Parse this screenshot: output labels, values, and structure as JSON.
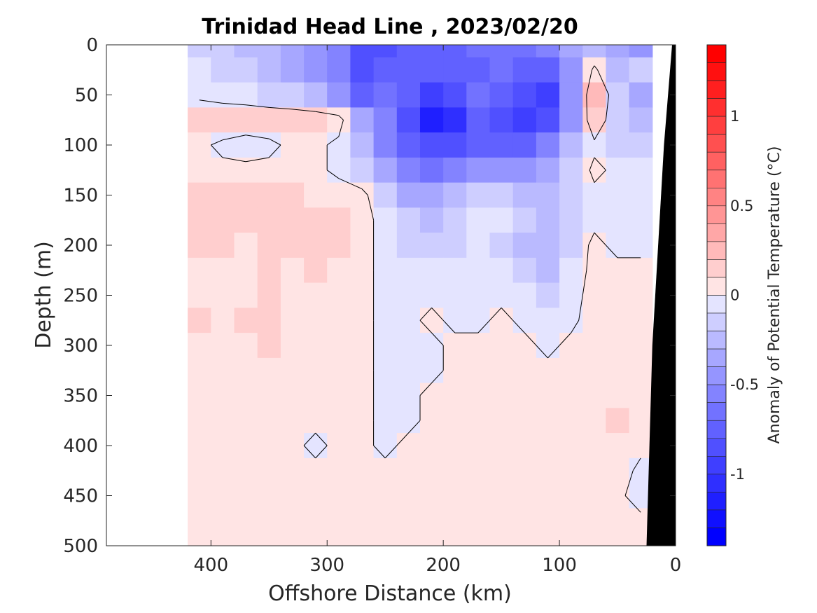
{
  "chart_data": {
    "type": "heatmap",
    "subtype": "filled-contour-section",
    "title": "Trinidad Head Line , 2023/02/20",
    "xlabel": "Offshore Distance (km)",
    "ylabel": "Depth (m)",
    "xlim": [
      490,
      0
    ],
    "ylim": [
      500,
      0
    ],
    "x_reversed": true,
    "y_reversed": true,
    "xticks": [
      400,
      300,
      200,
      100,
      0
    ],
    "yticks": [
      0,
      50,
      100,
      150,
      200,
      250,
      300,
      350,
      400,
      450,
      500
    ],
    "colorbar": {
      "label": "Anomaly of Potential Temperature (°C)",
      "range": [
        -1.4,
        1.4
      ],
      "step": 0.1,
      "ticks": [
        1,
        0.5,
        0,
        -0.5,
        -1
      ],
      "tick_labels": [
        "1",
        "0.5",
        "0",
        "-0.5",
        "-1"
      ],
      "colormap": "blue-white-red",
      "neg_color": "#0000ff",
      "pos_color": "#ff0000",
      "zero_color": "#ffffff"
    },
    "zero_contour": true,
    "data_extent_x": [
      410,
      20
    ],
    "seafloor_color": "#000000",
    "grid": false,
    "field": {
      "x": [
        410,
        390,
        370,
        350,
        330,
        310,
        290,
        270,
        250,
        230,
        210,
        190,
        170,
        150,
        130,
        110,
        90,
        70,
        50,
        30
      ],
      "y": [
        0,
        25,
        50,
        75,
        100,
        125,
        150,
        175,
        200,
        225,
        250,
        275,
        300,
        325,
        350,
        375,
        400,
        425,
        450,
        475,
        500
      ],
      "values": [
        [
          -0.15,
          -0.2,
          -0.25,
          -0.3,
          -0.4,
          -0.5,
          -0.6,
          -0.85,
          -0.9,
          -0.8,
          -0.8,
          -0.75,
          -0.7,
          -0.7,
          -0.65,
          -0.55,
          -0.4,
          -0.25,
          -0.4,
          -0.45
        ],
        [
          -0.1,
          -0.15,
          -0.2,
          -0.25,
          -0.35,
          -0.45,
          -0.6,
          -0.9,
          -0.8,
          -0.75,
          -0.8,
          -0.8,
          -0.75,
          -0.7,
          -0.75,
          -0.75,
          -0.45,
          0.05,
          -0.3,
          -0.2
        ],
        [
          -0.05,
          -0.1,
          -0.1,
          -0.15,
          -0.2,
          -0.3,
          -0.45,
          -0.75,
          -0.7,
          -0.8,
          -0.95,
          -0.85,
          -0.7,
          -0.75,
          -0.85,
          -0.95,
          -0.5,
          0.25,
          -0.15,
          -0.35
        ],
        [
          0.2,
          0.2,
          0.15,
          0.15,
          0.15,
          0.15,
          0.1,
          -0.4,
          -0.6,
          -0.85,
          -1.15,
          -1.05,
          -0.8,
          -0.85,
          -0.95,
          -0.85,
          -0.45,
          0.2,
          -0.2,
          -0.3
        ],
        [
          0.05,
          -0.05,
          -0.1,
          -0.05,
          0.05,
          0.05,
          -0.05,
          -0.3,
          -0.55,
          -0.8,
          -0.9,
          -0.85,
          -0.75,
          -0.8,
          -0.75,
          -0.6,
          -0.3,
          -0.05,
          -0.15,
          -0.2
        ],
        [
          0.05,
          0.05,
          0.05,
          0.05,
          0.05,
          0.05,
          -0.05,
          -0.15,
          -0.4,
          -0.6,
          -0.65,
          -0.6,
          -0.5,
          -0.45,
          -0.45,
          -0.35,
          -0.2,
          0.05,
          -0.05,
          -0.1
        ],
        [
          0.15,
          0.2,
          0.2,
          0.2,
          0.15,
          0.1,
          0.1,
          0.05,
          -0.15,
          -0.35,
          -0.4,
          -0.3,
          -0.2,
          -0.15,
          -0.25,
          -0.25,
          -0.15,
          -0.05,
          -0.05,
          -0.1
        ],
        [
          0.15,
          0.2,
          0.15,
          0.15,
          0.2,
          0.15,
          0.15,
          0.05,
          -0.05,
          -0.2,
          -0.25,
          -0.2,
          -0.1,
          -0.1,
          -0.2,
          -0.3,
          -0.15,
          -0.05,
          -0.1,
          -0.1
        ],
        [
          0.2,
          0.15,
          0.1,
          0.15,
          0.15,
          0.2,
          0.15,
          0.05,
          -0.05,
          -0.15,
          -0.15,
          -0.15,
          -0.1,
          -0.15,
          -0.25,
          -0.3,
          -0.15,
          0.05,
          -0.05,
          -0.05
        ],
        [
          0.1,
          0.1,
          0.1,
          0.15,
          0.1,
          0.15,
          0.1,
          0.05,
          -0.05,
          -0.1,
          -0.1,
          -0.1,
          -0.05,
          -0.1,
          -0.2,
          -0.25,
          -0.1,
          0.05,
          0.05,
          0.05
        ],
        [
          0.1,
          0.05,
          0.1,
          0.15,
          0.1,
          0.1,
          0.1,
          0.05,
          -0.05,
          -0.1,
          -0.05,
          -0.05,
          -0.05,
          -0.05,
          -0.1,
          -0.15,
          -0.05,
          0.05,
          0.05,
          0.05
        ],
        [
          0.15,
          0.1,
          0.15,
          0.2,
          0.1,
          0.1,
          0.05,
          0.05,
          -0.05,
          -0.05,
          0.05,
          -0.05,
          -0.05,
          0.05,
          -0.05,
          -0.1,
          -0.05,
          0.1,
          0.05,
          0.05
        ],
        [
          0.1,
          0.05,
          0.1,
          0.15,
          0.1,
          0.05,
          0.05,
          0.05,
          -0.05,
          -0.05,
          -0.05,
          0.05,
          0.05,
          0.05,
          0.05,
          -0.05,
          0.05,
          0.05,
          0.05,
          0.05
        ],
        [
          0.1,
          0.05,
          0.05,
          0.1,
          0.1,
          0.05,
          0.05,
          0.05,
          -0.05,
          -0.05,
          -0.05,
          0.05,
          0.05,
          0.05,
          0.05,
          0.05,
          0.05,
          0.05,
          0.1,
          0.05
        ],
        [
          0.1,
          0.05,
          0.05,
          0.05,
          0.05,
          0.05,
          0.05,
          0.05,
          -0.05,
          -0.05,
          0.05,
          0.05,
          0.05,
          0.05,
          0.05,
          0.05,
          0.05,
          0.05,
          0.1,
          0.05
        ],
        [
          0.1,
          0.05,
          0.05,
          0.05,
          0.05,
          0.05,
          0.05,
          0.05,
          -0.05,
          -0.05,
          0.05,
          0.05,
          0.05,
          0.05,
          0.05,
          0.05,
          0.05,
          0.05,
          0.15,
          0.05
        ],
        [
          0.05,
          0.05,
          0.05,
          0.05,
          0.05,
          -0.05,
          0.05,
          0.05,
          -0.05,
          0.05,
          0.05,
          0.05,
          0.05,
          0.05,
          0.05,
          0.05,
          0.05,
          0.05,
          0.1,
          0.05
        ],
        [
          0.05,
          0.05,
          0.05,
          0.05,
          0.05,
          0.05,
          0.05,
          0.05,
          0.05,
          0.05,
          0.05,
          0.05,
          0.05,
          0.05,
          0.05,
          0.05,
          0.05,
          0.05,
          0.1,
          -0.05
        ],
        [
          0.05,
          0.05,
          0.05,
          0.05,
          0.05,
          0.05,
          0.05,
          0.05,
          0.05,
          0.05,
          0.05,
          0.05,
          0.05,
          0.05,
          0.05,
          0.05,
          0.05,
          0.05,
          0.05,
          -0.1
        ],
        [
          0.05,
          0.05,
          0.05,
          0.05,
          0.05,
          0.05,
          0.05,
          0.05,
          0.05,
          0.05,
          0.05,
          0.05,
          0.05,
          0.05,
          0.05,
          0.05,
          0.05,
          0.1,
          0.05,
          0.05
        ],
        [
          0.05,
          0.05,
          0.05,
          0.05,
          0.05,
          0.05,
          0.05,
          0.05,
          0.05,
          0.05,
          0.05,
          0.05,
          0.05,
          0.05,
          0.05,
          0.1,
          0.1,
          0.1,
          0.05,
          0.05
        ]
      ]
    },
    "seafloor": {
      "x": [
        0,
        3,
        10,
        20,
        25
      ],
      "depth": [
        0,
        0,
        100,
        300,
        500
      ]
    }
  }
}
